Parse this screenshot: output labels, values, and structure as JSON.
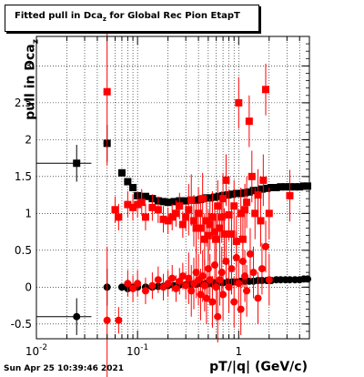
{
  "chart_data": {
    "type": "scatter",
    "title": "Fitted pull in Dca",
    "title_subscript": "z",
    "title_suffix": " for Global Rec Pion EtapT",
    "xlabel": "pT/|q| (GeV/c)",
    "ylabel": "pull in Dca",
    "ylabel_subscript": "z",
    "xscale": "log",
    "xlim": [
      0.01,
      5
    ],
    "ylim": [
      -0.7,
      3.4
    ],
    "grid": true,
    "x_tick_labels": [
      {
        "label_base": "10",
        "label_exp": "-2",
        "value": 0.01
      },
      {
        "label_base": "10",
        "label_exp": "-1",
        "value": 0.1
      },
      {
        "label_base": "1",
        "label_exp": "",
        "value": 1
      }
    ],
    "y_tick_labels": [
      "-0.5",
      "0",
      "0.5",
      "1",
      "1.5",
      "2",
      "2.5",
      "3"
    ],
    "y_tick_values": [
      -0.5,
      0,
      0.5,
      1,
      1.5,
      2,
      2.5,
      3
    ],
    "series": [
      {
        "color": "#000000",
        "marker": "square",
        "points": [
          [
            0.025,
            1.68
          ],
          [
            0.05,
            1.95
          ],
          [
            0.07,
            1.55
          ],
          [
            0.08,
            1.43
          ],
          [
            0.09,
            1.35
          ],
          [
            0.1,
            1.24
          ],
          [
            0.12,
            1.23
          ],
          [
            0.14,
            1.2
          ],
          [
            0.16,
            1.17
          ],
          [
            0.18,
            1.16
          ],
          [
            0.2,
            1.15
          ],
          [
            0.23,
            1.16
          ],
          [
            0.26,
            1.17
          ],
          [
            0.3,
            1.17
          ],
          [
            0.34,
            1.18
          ],
          [
            0.38,
            1.18
          ],
          [
            0.42,
            1.19
          ],
          [
            0.47,
            1.21
          ],
          [
            0.52,
            1.21
          ],
          [
            0.58,
            1.22
          ],
          [
            0.64,
            1.23
          ],
          [
            0.7,
            1.24
          ],
          [
            0.78,
            1.25
          ],
          [
            0.86,
            1.26
          ],
          [
            0.95,
            1.27
          ],
          [
            1.05,
            1.27
          ],
          [
            1.15,
            1.28
          ],
          [
            1.27,
            1.29
          ],
          [
            1.4,
            1.31
          ],
          [
            1.55,
            1.31
          ],
          [
            1.7,
            1.33
          ],
          [
            1.9,
            1.34
          ],
          [
            2.1,
            1.35
          ],
          [
            2.35,
            1.35
          ],
          [
            2.6,
            1.36
          ],
          [
            2.9,
            1.36
          ],
          [
            3.2,
            1.36
          ],
          [
            3.6,
            1.36
          ],
          [
            4.0,
            1.36
          ],
          [
            4.4,
            1.37
          ],
          [
            4.8,
            1.37
          ]
        ]
      },
      {
        "color": "#000000",
        "marker": "circle",
        "points": [
          [
            0.025,
            -0.4
          ],
          [
            0.05,
            0.0
          ],
          [
            0.07,
            0.0
          ],
          [
            0.08,
            -0.02
          ],
          [
            0.09,
            0.0
          ],
          [
            0.1,
            0.0
          ],
          [
            0.12,
            0.0
          ],
          [
            0.14,
            0.0
          ],
          [
            0.16,
            0.01
          ],
          [
            0.18,
            0.01
          ],
          [
            0.2,
            0.02
          ],
          [
            0.23,
            0.02
          ],
          [
            0.26,
            0.03
          ],
          [
            0.3,
            0.03
          ],
          [
            0.34,
            0.04
          ],
          [
            0.38,
            0.04
          ],
          [
            0.42,
            0.05
          ],
          [
            0.47,
            0.05
          ],
          [
            0.52,
            0.05
          ],
          [
            0.58,
            0.06
          ],
          [
            0.64,
            0.06
          ],
          [
            0.7,
            0.06
          ],
          [
            0.78,
            0.07
          ],
          [
            0.86,
            0.07
          ],
          [
            0.95,
            0.07
          ],
          [
            1.05,
            0.08
          ],
          [
            1.15,
            0.08
          ],
          [
            1.27,
            0.08
          ],
          [
            1.4,
            0.08
          ],
          [
            1.55,
            0.09
          ],
          [
            1.7,
            0.09
          ],
          [
            1.9,
            0.09
          ],
          [
            2.1,
            0.09
          ],
          [
            2.35,
            0.1
          ],
          [
            2.6,
            0.1
          ],
          [
            2.9,
            0.1
          ],
          [
            3.2,
            0.1
          ],
          [
            3.6,
            0.1
          ],
          [
            4.0,
            0.1
          ],
          [
            4.4,
            0.11
          ],
          [
            4.8,
            0.11
          ]
        ]
      },
      {
        "color": "#ff0000",
        "marker": "square",
        "points": [
          [
            0.05,
            2.65
          ],
          [
            0.06,
            1.05
          ],
          [
            0.065,
            0.95
          ],
          [
            0.08,
            1.12
          ],
          [
            0.09,
            1.08
          ],
          [
            0.1,
            1.12
          ],
          [
            0.11,
            1.15
          ],
          [
            0.12,
            0.95
          ],
          [
            0.14,
            1.08
          ],
          [
            0.16,
            1.05
          ],
          [
            0.18,
            0.92
          ],
          [
            0.2,
            0.9
          ],
          [
            0.22,
            0.95
          ],
          [
            0.24,
            1.0
          ],
          [
            0.26,
            1.1
          ],
          [
            0.28,
            0.85
          ],
          [
            0.3,
            0.95
          ],
          [
            0.32,
            1.05
          ],
          [
            0.34,
            1.18
          ],
          [
            0.36,
            0.9
          ],
          [
            0.38,
            0.8
          ],
          [
            0.4,
            1.0
          ],
          [
            0.42,
            0.8
          ],
          [
            0.44,
            1.2
          ],
          [
            0.46,
            0.65
          ],
          [
            0.48,
            0.9
          ],
          [
            0.5,
            0.7
          ],
          [
            0.52,
            0.85
          ],
          [
            0.55,
            0.95
          ],
          [
            0.58,
            0.75
          ],
          [
            0.6,
            0.65
          ],
          [
            0.62,
            1.1
          ],
          [
            0.65,
            0.8
          ],
          [
            0.68,
            0.95
          ],
          [
            0.7,
            1.2
          ],
          [
            0.72,
            0.72
          ],
          [
            0.75,
            1.45
          ],
          [
            0.8,
            0.98
          ],
          [
            0.85,
            0.72
          ],
          [
            0.9,
            1.1
          ],
          [
            0.95,
            0.62
          ],
          [
            1.0,
            2.5
          ],
          [
            1.05,
            1.0
          ],
          [
            1.1,
            0.65
          ],
          [
            1.15,
            1.05
          ],
          [
            1.2,
            1.15
          ],
          [
            1.27,
            2.25
          ],
          [
            1.35,
            1.5
          ],
          [
            1.45,
            1.0
          ],
          [
            1.55,
            1.25
          ],
          [
            1.65,
            0.9
          ],
          [
            1.75,
            1.45
          ],
          [
            1.85,
            2.68
          ],
          [
            2.0,
            1.0
          ],
          [
            3.2,
            1.24
          ]
        ]
      },
      {
        "color": "#ff0000",
        "marker": "circle",
        "points": [
          [
            0.05,
            -0.45
          ],
          [
            0.065,
            -0.45
          ],
          [
            0.08,
            0.05
          ],
          [
            0.09,
            -0.02
          ],
          [
            0.1,
            0.05
          ],
          [
            0.12,
            -0.05
          ],
          [
            0.14,
            0.02
          ],
          [
            0.16,
            0.1
          ],
          [
            0.18,
            0.0
          ],
          [
            0.2,
            0.05
          ],
          [
            0.22,
            0.12
          ],
          [
            0.24,
            -0.02
          ],
          [
            0.26,
            0.08
          ],
          [
            0.28,
            0.15
          ],
          [
            0.3,
            0.02
          ],
          [
            0.32,
            0.12
          ],
          [
            0.34,
            -0.05
          ],
          [
            0.36,
            0.05
          ],
          [
            0.38,
            0.2
          ],
          [
            0.4,
            0.1
          ],
          [
            0.42,
            -0.1
          ],
          [
            0.44,
            0.15
          ],
          [
            0.46,
            0.02
          ],
          [
            0.48,
            -0.15
          ],
          [
            0.5,
            0.25
          ],
          [
            0.52,
            0.1
          ],
          [
            0.55,
            -0.2
          ],
          [
            0.58,
            0.3
          ],
          [
            0.6,
            0.0
          ],
          [
            0.62,
            -0.4
          ],
          [
            0.65,
            0.1
          ],
          [
            0.68,
            0.2
          ],
          [
            0.7,
            -0.1
          ],
          [
            0.75,
            0.35
          ],
          [
            0.8,
            0.0
          ],
          [
            0.85,
            0.25
          ],
          [
            0.9,
            -0.2
          ],
          [
            0.95,
            0.4
          ],
          [
            1.0,
            0.05
          ],
          [
            1.05,
            -0.3
          ],
          [
            1.1,
            0.35
          ],
          [
            1.15,
            0.15
          ],
          [
            1.2,
            -0.05
          ],
          [
            1.3,
            0.45
          ],
          [
            1.4,
            0.2
          ],
          [
            1.55,
            -0.15
          ],
          [
            1.7,
            0.25
          ],
          [
            1.85,
            0.55
          ],
          [
            2.0,
            0.1
          ]
        ]
      }
    ]
  },
  "header": {
    "timestamp": "Sun Apr 25 10:39:46 2021"
  }
}
